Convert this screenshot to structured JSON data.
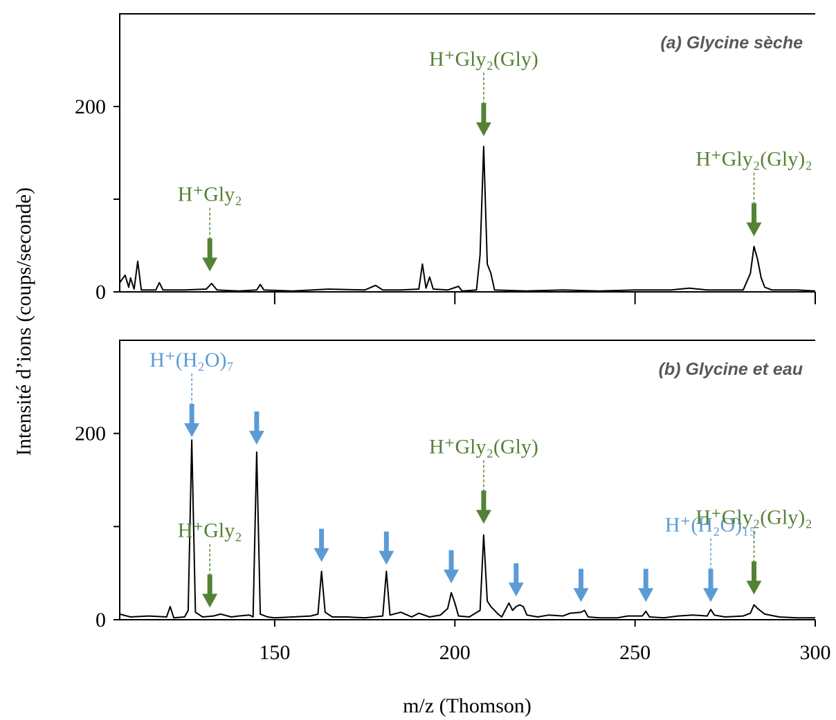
{
  "xlabel": "m/z (Thomson)",
  "ylabel": "Intensité d’ions (coups/seconde)",
  "chart_data": [
    {
      "type": "line",
      "title": "(a) Glycine sèche",
      "color": "#000000",
      "xlim": [
        107,
        300
      ],
      "ylim": [
        0,
        300
      ],
      "yticks": [
        0,
        200
      ],
      "yminorticks": [
        100
      ],
      "xticks": [
        150,
        200,
        250,
        300
      ],
      "xtick_labels": false,
      "x": [
        107,
        108.5,
        109.5,
        110,
        111,
        112,
        113,
        117,
        118,
        119,
        125,
        131,
        132.5,
        134,
        140,
        145,
        146,
        147,
        155,
        165,
        175,
        178,
        180,
        185,
        190,
        191,
        192,
        193,
        194,
        198,
        201,
        202,
        206,
        207,
        208,
        209,
        210,
        211,
        220,
        230,
        240,
        250,
        260,
        265,
        270,
        280,
        282,
        283,
        284,
        285,
        286,
        288,
        295,
        300
      ],
      "values": [
        10,
        18,
        5,
        15,
        3,
        33,
        2,
        2,
        10,
        2,
        2,
        3,
        9,
        2,
        1,
        2,
        8,
        2,
        1,
        3,
        2,
        7,
        2,
        2,
        3,
        30,
        4,
        16,
        3,
        2,
        6,
        1,
        2,
        40,
        157,
        30,
        20,
        2,
        1,
        2,
        1,
        2,
        2,
        4,
        2,
        2,
        20,
        49,
        35,
        15,
        5,
        2,
        2,
        1
      ],
      "annotations": [
        {
          "text": "H⁺Gly₂",
          "x": 132,
          "y": 22,
          "color": "#548235"
        },
        {
          "text": "H⁺Gly₂(Gly)",
          "x": 208,
          "y": 168,
          "color": "#548235"
        },
        {
          "text": "H⁺Gly₂(Gly)₂",
          "x": 283,
          "y": 60,
          "color": "#548235"
        }
      ],
      "arrows": []
    },
    {
      "type": "line",
      "title": "(b) Glycine et eau",
      "color": "#000000",
      "xlim": [
        107,
        300
      ],
      "ylim": [
        0,
        300
      ],
      "yticks": [
        0,
        200
      ],
      "yminorticks": [
        100
      ],
      "xticks": [
        150,
        200,
        250,
        300
      ],
      "xtick_labels": true,
      "x": [
        107,
        110,
        115,
        120,
        121,
        122,
        125,
        126,
        127,
        128,
        130,
        133,
        135,
        138,
        140,
        143,
        144,
        145,
        146,
        148,
        150,
        155,
        160,
        162,
        163,
        164,
        166,
        170,
        175,
        180,
        181,
        182,
        185,
        188,
        190,
        193,
        196,
        198,
        199,
        200,
        201,
        204,
        207,
        208,
        209,
        210,
        212,
        213,
        215,
        216,
        217,
        218,
        219,
        220,
        223,
        226,
        230,
        232,
        235,
        236,
        237,
        240,
        245,
        248,
        252,
        253,
        254,
        258,
        262,
        266,
        270,
        271,
        272,
        275,
        280,
        282,
        283,
        284,
        286,
        290,
        295,
        300
      ],
      "values": [
        6,
        3,
        4,
        3,
        14,
        2,
        3,
        10,
        193,
        8,
        3,
        4,
        6,
        3,
        4,
        5,
        3,
        180,
        6,
        3,
        2,
        3,
        4,
        6,
        52,
        8,
        3,
        3,
        2,
        4,
        52,
        5,
        8,
        3,
        7,
        3,
        5,
        12,
        29,
        18,
        4,
        3,
        10,
        91,
        20,
        14,
        6,
        3,
        18,
        10,
        14,
        16,
        14,
        5,
        3,
        5,
        4,
        7,
        8,
        10,
        3,
        2,
        2,
        4,
        4,
        9,
        3,
        2,
        4,
        5,
        4,
        11,
        5,
        3,
        4,
        7,
        16,
        12,
        6,
        3,
        2,
        2
      ],
      "annotations": [
        {
          "text": "H⁺(H₂O)₇",
          "x": 127,
          "y": 196,
          "color": "#5b9bd5"
        },
        {
          "text": "H⁺Gly₂",
          "x": 132,
          "y": 13,
          "color": "#548235"
        },
        {
          "text": "H⁺Gly₂(Gly)",
          "x": 208,
          "y": 103,
          "color": "#548235"
        },
        {
          "text": "H⁺(H₂O)₁₅",
          "x": 271,
          "y": 19,
          "color": "#5b9bd5"
        },
        {
          "text": "H⁺Gly₂(Gly)₂",
          "x": 283,
          "y": 27,
          "color": "#548235"
        }
      ],
      "arrows": [
        {
          "x": 145,
          "y": 188,
          "color": "#5b9bd5"
        },
        {
          "x": 163,
          "y": 62,
          "color": "#5b9bd5"
        },
        {
          "x": 181,
          "y": 59,
          "color": "#5b9bd5"
        },
        {
          "x": 199,
          "y": 39,
          "color": "#5b9bd5"
        },
        {
          "x": 217,
          "y": 25,
          "color": "#5b9bd5"
        },
        {
          "x": 235,
          "y": 19,
          "color": "#5b9bd5"
        },
        {
          "x": 253,
          "y": 19,
          "color": "#5b9bd5"
        }
      ]
    }
  ]
}
